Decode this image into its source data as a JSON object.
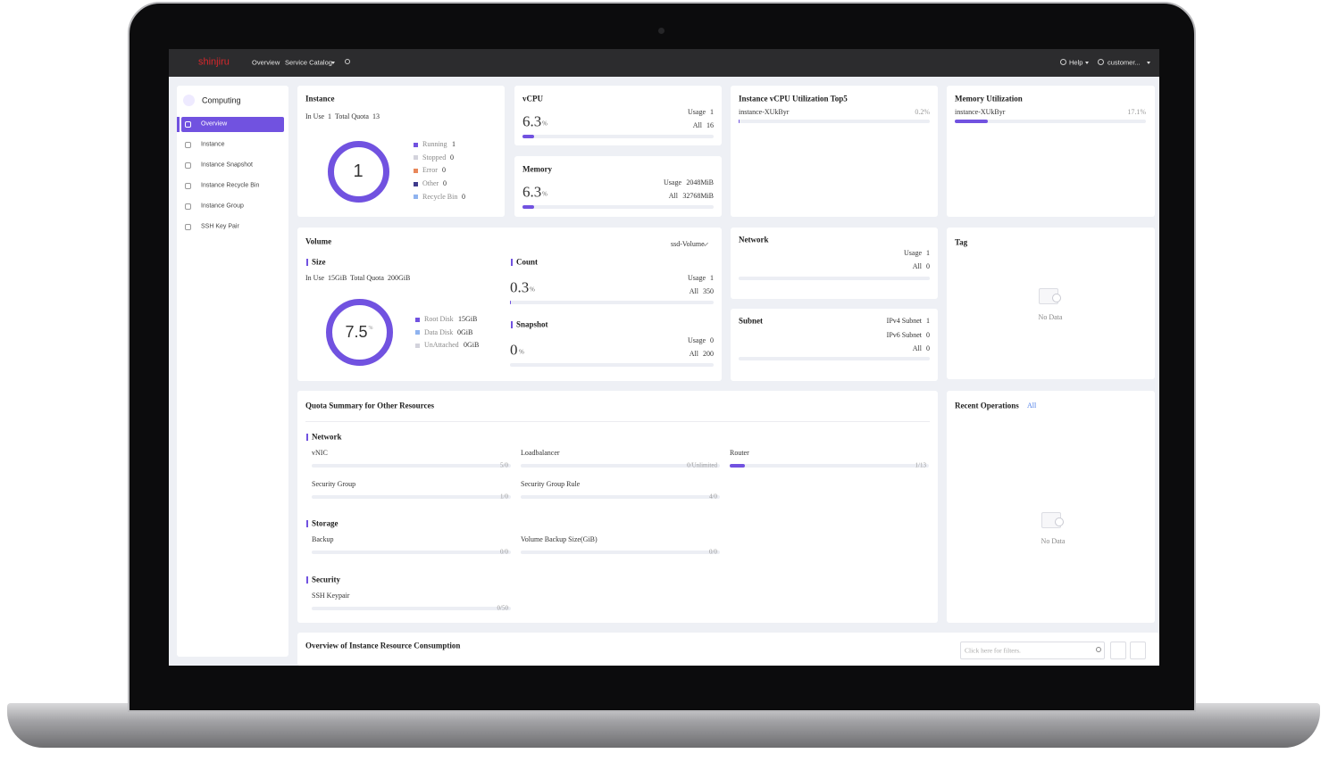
{
  "topbar": {
    "logo": "shinjiru",
    "nav": [
      "Overview",
      "Service Catalog"
    ],
    "help": "Help",
    "user": "customer..."
  },
  "sidebar": {
    "title": "Computing",
    "items": [
      "Overview",
      "Instance",
      "Instance Snapshot",
      "Instance Recycle Bin",
      "Instance Group",
      "SSH Key Pair"
    ]
  },
  "instance": {
    "title": "Instance",
    "in_use": {
      "label": "In Use",
      "value": 1
    },
    "quota": {
      "label": "Total Quota",
      "value": 13
    },
    "center": 1,
    "legend": [
      {
        "name": "Running",
        "value": 1,
        "color": "#7152e0"
      },
      {
        "name": "Stopped",
        "value": 0,
        "color": "#d3d3dc"
      },
      {
        "name": "Error",
        "value": 0,
        "color": "#e8875a"
      },
      {
        "name": "Other",
        "value": 0,
        "color": "#3f3a8c"
      },
      {
        "name": "Recycle Bin",
        "value": 0,
        "color": "#8fb3ef"
      }
    ]
  },
  "vcpu": {
    "title": "vCPU",
    "percent": 6.3,
    "unit": "%",
    "usage": {
      "label": "Usage",
      "value": 1
    },
    "all": {
      "label": "All",
      "value": 16
    }
  },
  "memory": {
    "title": "Memory",
    "percent": 6.3,
    "unit": "%",
    "usage": {
      "label": "Usage",
      "value": "2048MiB"
    },
    "all": {
      "label": "All",
      "value": "32768MiB"
    }
  },
  "vcpu_top5": {
    "title": "Instance vCPU Utilization Top5",
    "rows": [
      {
        "name": "instance-XUkByr",
        "percent": 0.2,
        "label": "0.2%"
      }
    ]
  },
  "memory_util": {
    "title": "Memory Utilization",
    "rows": [
      {
        "name": "instance-XUkByr",
        "percent": 17.1,
        "label": "17.1%"
      }
    ]
  },
  "volume": {
    "title": "Volume",
    "type": "ssd-Volume",
    "size": {
      "title": "Size",
      "in_use": {
        "label": "In Use",
        "value": "15GiB"
      },
      "quota": {
        "label": "Total Quota",
        "value": "200GiB"
      },
      "percent": 7.5,
      "unit": "%",
      "legend": [
        {
          "name": "Root Disk",
          "value": "15GiB",
          "color": "#7152e0"
        },
        {
          "name": "Data Disk",
          "value": "0GiB",
          "color": "#8fb3ef"
        },
        {
          "name": "UnAttached",
          "value": "0GiB",
          "color": "#d3d3dc"
        }
      ]
    },
    "count": {
      "title": "Count",
      "percent": 0.3,
      "unit": "%",
      "usage": {
        "label": "Usage",
        "value": 1
      },
      "all": {
        "label": "All",
        "value": 350
      }
    },
    "snapshot": {
      "title": "Snapshot",
      "percent": 0,
      "unit": "%",
      "usage": {
        "label": "Usage",
        "value": 0
      },
      "all": {
        "label": "All",
        "value": 200
      }
    }
  },
  "network": {
    "title": "Network",
    "usage": {
      "label": "Usage",
      "value": 1
    },
    "all": {
      "label": "All",
      "value": 0
    }
  },
  "subnet": {
    "title": "Subnet",
    "rows": [
      {
        "label": "IPv4 Subnet",
        "value": 1
      },
      {
        "label": "IPv6 Subnet",
        "value": 0
      },
      {
        "label": "All",
        "value": 0
      }
    ]
  },
  "tag": {
    "title": "Tag",
    "empty": "No Data"
  },
  "quota_summary": {
    "title": "Quota Summary for Other Resources",
    "groups": [
      {
        "title": "Network",
        "items": [
          {
            "name": "vNIC",
            "label": "5/0",
            "used": 5,
            "quota": 0
          },
          {
            "name": "Loadbalancer",
            "label": "0/Unlimited",
            "used": 0,
            "quota": null
          },
          {
            "name": "Router",
            "label": "1/13",
            "used": 1,
            "quota": 13
          },
          {
            "name": "Security Group",
            "label": "1/0",
            "used": 1,
            "quota": 0
          },
          {
            "name": "Security Group Rule",
            "label": "4/0",
            "used": 4,
            "quota": 0
          }
        ]
      },
      {
        "title": "Storage",
        "items": [
          {
            "name": "Backup",
            "label": "0/0",
            "used": 0,
            "quota": 0
          },
          {
            "name": "Volume Backup Size(GiB)",
            "label": "0/0",
            "used": 0,
            "quota": 0
          }
        ]
      },
      {
        "title": "Security",
        "items": [
          {
            "name": "SSH Keypair",
            "label": "0/50",
            "used": 0,
            "quota": 50
          }
        ]
      }
    ]
  },
  "recent_operations": {
    "title": "Recent Operations",
    "link": "All",
    "empty": "No Data"
  },
  "consumption": {
    "title": "Overview of Instance Resource Consumption",
    "search_placeholder": "Click here for filters."
  }
}
